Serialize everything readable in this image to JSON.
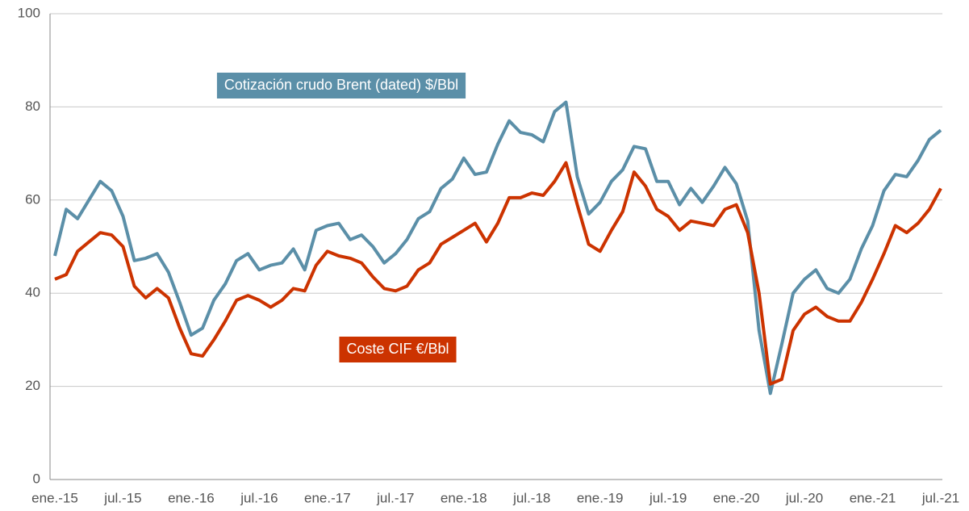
{
  "chart_data": {
    "type": "line",
    "categories": [
      "ene.-15",
      null,
      null,
      null,
      null,
      null,
      "jul.-15",
      null,
      null,
      null,
      null,
      null,
      "ene.-16",
      null,
      null,
      null,
      null,
      null,
      "jul.-16",
      null,
      null,
      null,
      null,
      null,
      "ene.-17",
      null,
      null,
      null,
      null,
      null,
      "jul.-17",
      null,
      null,
      null,
      null,
      null,
      "ene.-18",
      null,
      null,
      null,
      null,
      null,
      "jul.-18",
      null,
      null,
      null,
      null,
      null,
      "ene.-19",
      null,
      null,
      null,
      null,
      null,
      "jul.-19",
      null,
      null,
      null,
      null,
      null,
      "ene.-20",
      null,
      null,
      null,
      null,
      null,
      "jul.-20",
      null,
      null,
      null,
      null,
      null,
      "ene.-21",
      null,
      null,
      null,
      null,
      null,
      "jul.-21"
    ],
    "series": [
      {
        "name": "Cotización crudo Brent (dated) $/Bbl",
        "color": "#5b8fa8",
        "values": [
          48,
          58,
          56,
          60,
          64,
          62,
          56.5,
          47,
          47.5,
          48.5,
          44.5,
          38,
          31,
          32.5,
          38.5,
          42,
          47,
          48.5,
          45,
          46,
          46.5,
          49.5,
          45,
          53.5,
          54.5,
          55,
          51.5,
          52.5,
          50,
          46.5,
          48.5,
          51.5,
          56,
          57.5,
          62.5,
          64.5,
          69,
          65.5,
          66,
          72,
          77,
          74.5,
          74,
          72.5,
          79,
          81,
          65,
          57,
          59.5,
          64,
          66.5,
          71.5,
          71,
          64,
          64,
          59,
          62.5,
          59.5,
          63,
          67,
          63.5,
          55.5,
          32,
          18.5,
          29,
          40,
          43,
          45,
          41,
          40,
          43,
          49.5,
          54.5,
          62,
          65.5,
          65,
          68.5,
          73,
          75
        ]
      },
      {
        "name": "Coste CIF €/Bbl",
        "color": "#cc3300",
        "values": [
          43,
          44,
          49,
          51,
          53,
          52.5,
          50,
          41.5,
          39,
          41,
          39,
          32.5,
          27,
          26.5,
          30,
          34,
          38.5,
          39.5,
          38.5,
          37,
          38.5,
          41,
          40.5,
          46,
          49,
          48,
          47.5,
          46.5,
          43.5,
          41,
          40.5,
          41.5,
          45,
          46.5,
          50.5,
          52,
          53.5,
          55,
          51,
          55,
          60.5,
          60.5,
          61.5,
          61,
          64,
          68,
          59,
          50.5,
          49,
          53.5,
          57.5,
          66,
          63,
          58,
          56.5,
          53.5,
          55.5,
          55,
          54.5,
          58,
          59,
          53,
          40,
          20.5,
          21.5,
          32,
          35.5,
          37,
          35,
          34,
          34,
          38,
          43,
          48.5,
          54.5,
          53,
          55,
          58,
          62.5
        ]
      }
    ],
    "ylim": [
      0,
      100
    ],
    "yticks": [
      0,
      20,
      40,
      60,
      80,
      100
    ],
    "grid": true
  }
}
